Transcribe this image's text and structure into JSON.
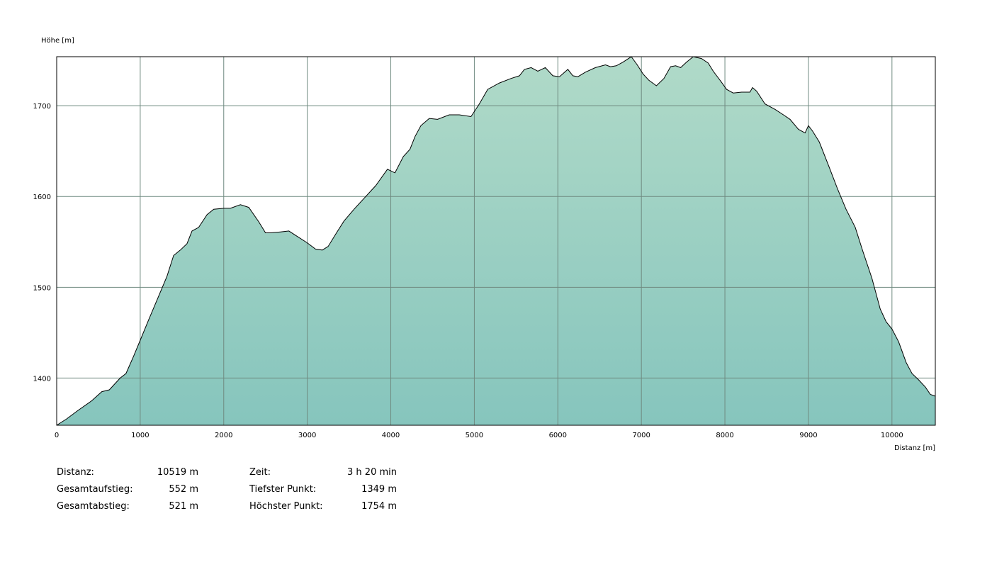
{
  "chart_data": {
    "type": "area",
    "ylabel": "Höhe [m]",
    "xlabel": "Distanz [m]",
    "xlim": [
      0,
      10519
    ],
    "ylim": [
      1348,
      1754
    ],
    "xticks": [
      0,
      1000,
      2000,
      3000,
      4000,
      5000,
      6000,
      7000,
      8000,
      9000,
      10000
    ],
    "yticks": [
      1400,
      1500,
      1600,
      1700
    ],
    "grid": true,
    "fill_top": "#b0dac8",
    "fill_bottom": "#86c5bd",
    "line_color": "#000000",
    "grid_color": "#6f8a80",
    "x": [
      0,
      120,
      250,
      420,
      540,
      630,
      760,
      830,
      920,
      1020,
      1100,
      1220,
      1320,
      1400,
      1480,
      1560,
      1620,
      1700,
      1800,
      1880,
      2000,
      2080,
      2200,
      2300,
      2420,
      2500,
      2560,
      2680,
      2780,
      2880,
      3000,
      3100,
      3180,
      3250,
      3350,
      3440,
      3560,
      3680,
      3820,
      3960,
      4050,
      4150,
      4230,
      4290,
      4360,
      4460,
      4560,
      4700,
      4820,
      4960,
      5060,
      5160,
      5300,
      5440,
      5540,
      5600,
      5680,
      5760,
      5850,
      5940,
      6020,
      6120,
      6180,
      6240,
      6330,
      6450,
      6570,
      6630,
      6700,
      6780,
      6880,
      6950,
      7020,
      7090,
      7180,
      7270,
      7350,
      7410,
      7470,
      7540,
      7620,
      7720,
      7800,
      7860,
      7950,
      8020,
      8100,
      8200,
      8300,
      8330,
      8380,
      8480,
      8600,
      8700,
      8780,
      8880,
      8960,
      9000,
      9050,
      9130,
      9250,
      9350,
      9450,
      9560,
      9650,
      9760,
      9860,
      9930,
      10000,
      10080,
      10170,
      10240,
      10320,
      10400,
      10460,
      10519
    ],
    "values": [
      1348,
      1355,
      1364,
      1375,
      1385,
      1387,
      1400,
      1405,
      1424,
      1446,
      1464,
      1490,
      1512,
      1535,
      1541,
      1548,
      1562,
      1566,
      1580,
      1586,
      1587,
      1587,
      1591,
      1588,
      1572,
      1560,
      1560,
      1561,
      1562,
      1556,
      1549,
      1542,
      1541,
      1545,
      1560,
      1573,
      1586,
      1598,
      1612,
      1630,
      1626,
      1644,
      1652,
      1666,
      1678,
      1686,
      1685,
      1690,
      1690,
      1688,
      1702,
      1718,
      1725,
      1730,
      1733,
      1740,
      1742,
      1738,
      1742,
      1733,
      1732,
      1740,
      1733,
      1732,
      1737,
      1742,
      1745,
      1743,
      1744,
      1748,
      1754,
      1745,
      1735,
      1728,
      1722,
      1730,
      1743,
      1744,
      1742,
      1748,
      1754,
      1752,
      1747,
      1738,
      1727,
      1718,
      1714,
      1715,
      1715,
      1720,
      1716,
      1702,
      1696,
      1690,
      1685,
      1674,
      1670,
      1678,
      1672,
      1660,
      1632,
      1608,
      1586,
      1566,
      1540,
      1510,
      1476,
      1462,
      1454,
      1440,
      1417,
      1405,
      1398,
      1390,
      1382,
      1380
    ]
  },
  "stats": {
    "distance_label": "Distanz:",
    "distance_value": "10519 m",
    "ascent_label": "Gesamtaufstieg:",
    "ascent_value": "552 m",
    "descent_label": "Gesamtabstieg:",
    "descent_value": "521 m",
    "time_label": "Zeit:",
    "time_value": "3 h 20 min",
    "lowest_label": "Tiefster Punkt:",
    "lowest_value": "1349 m",
    "highest_label": "Höchster Punkt:",
    "highest_value": "1754 m"
  }
}
